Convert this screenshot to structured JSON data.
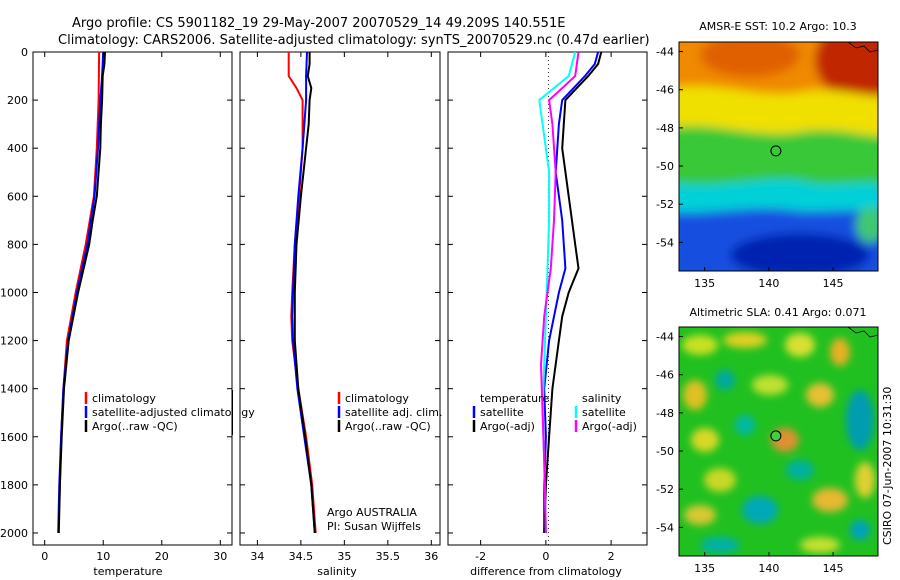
{
  "header": {
    "line1": "Argo profile: CS 5901182_19 29-May-2007 20070529_14 49.209S 140.551E",
    "line2": "Climatology: CARS2006. Satellite-adjusted climatology: synTS_20070529.nc (0.47d earlier)"
  },
  "credits": {
    "argo_line1": "Argo AUSTRALIA",
    "argo_line2": "PI: Susan Wijffels",
    "stamp": "CSIRO 07-Jun-2007 10:31:30"
  },
  "colors": {
    "climatology": "#ff0000",
    "satellite": "#0000ff",
    "argo": "#000000",
    "salinity": "#00ffff",
    "salinity_adj": "#ff00ff"
  },
  "chart_data": [
    {
      "type": "line",
      "id": "temperature",
      "xlabel": "temperature",
      "ylabel": "",
      "xlim": [
        -2,
        32
      ],
      "ylim": [
        2050,
        0
      ],
      "xticks": [
        0,
        10,
        20,
        30
      ],
      "xtick_labels": [
        "0",
        "10",
        "20",
        "30"
      ],
      "yticks": [
        0,
        200,
        400,
        600,
        800,
        1000,
        1200,
        1400,
        1600,
        1800,
        2000
      ],
      "ytick_labels": [
        "0",
        "200",
        "400",
        "600",
        "800",
        "1000",
        "1200",
        "1400",
        "1600",
        "1800",
        "2000"
      ],
      "legend": {
        "position": "lower-right",
        "entries": [
          {
            "label": "climatology",
            "color": "#ff0000"
          },
          {
            "label": "satellite-adjusted climatology",
            "color": "#0000ff"
          },
          {
            "label": "Argo(..raw -QC)",
            "color": "#000000"
          }
        ]
      },
      "series": [
        {
          "name": "climatology",
          "color": "#ff0000",
          "depth": [
            0,
            200,
            400,
            600,
            800,
            1000,
            1200,
            1400,
            1600,
            1800,
            1900
          ],
          "value": [
            9.3,
            9.2,
            8.9,
            8.4,
            7.0,
            5.3,
            3.8,
            3.2,
            2.8,
            2.6,
            2.5
          ]
        },
        {
          "name": "satellite-adjusted climatology",
          "color": "#0000ff",
          "depth": [
            0,
            100,
            200,
            400,
            600,
            800,
            1000,
            1200,
            1400,
            1600,
            1800,
            2000
          ],
          "value": [
            10.0,
            9.8,
            9.5,
            9.1,
            8.5,
            7.3,
            5.5,
            4.0,
            3.2,
            2.8,
            2.5,
            2.3
          ]
        },
        {
          "name": "Argo(..raw -QC)",
          "color": "#000000",
          "depth": [
            0,
            50,
            100,
            200,
            300,
            400,
            600,
            700,
            800,
            1000,
            1200,
            1400,
            1600,
            1800,
            2000
          ],
          "value": [
            10.3,
            10.2,
            9.9,
            9.8,
            9.6,
            9.5,
            8.9,
            8.2,
            7.6,
            5.7,
            4.1,
            3.3,
            2.9,
            2.6,
            2.4
          ]
        }
      ]
    },
    {
      "type": "line",
      "id": "salinity",
      "xlabel": "salinity",
      "ylabel": "",
      "xlim": [
        33.8,
        36.1
      ],
      "ylim": [
        2050,
        0
      ],
      "xticks": [
        34,
        34.5,
        35,
        35.5,
        36
      ],
      "xtick_labels": [
        "34",
        "34.5",
        "35",
        "35.5",
        "36"
      ],
      "legend": {
        "position": "lower-right",
        "entries": [
          {
            "label": "climatology",
            "color": "#ff0000"
          },
          {
            "label": "satellite adj. clim.",
            "color": "#0000ff"
          },
          {
            "label": "Argo(..raw -QC)",
            "color": "#000000"
          }
        ]
      },
      "series": [
        {
          "name": "climatology",
          "color": "#ff0000",
          "depth": [
            0,
            100,
            150,
            200,
            400,
            600,
            800,
            1000,
            1100,
            1200,
            1400,
            1600,
            1800,
            2000
          ],
          "value": [
            34.36,
            34.36,
            34.45,
            34.52,
            34.52,
            34.48,
            34.43,
            34.4,
            34.39,
            34.4,
            34.47,
            34.56,
            34.63,
            34.67
          ]
        },
        {
          "name": "satellite adj. clim.",
          "color": "#0000ff",
          "depth": [
            0,
            100,
            200,
            400,
            600,
            800,
            1000,
            1100,
            1200,
            1400,
            1600,
            1800,
            2000
          ],
          "value": [
            34.57,
            34.56,
            34.56,
            34.52,
            34.47,
            34.43,
            34.41,
            34.4,
            34.41,
            34.46,
            34.54,
            34.62,
            34.66
          ]
        },
        {
          "name": "Argo(..raw -QC)",
          "color": "#000000",
          "depth": [
            0,
            50,
            100,
            150,
            200,
            300,
            400,
            600,
            800,
            1000,
            1200,
            1400,
            1600,
            1800,
            2000
          ],
          "value": [
            34.6,
            34.6,
            34.58,
            34.62,
            34.6,
            34.59,
            34.56,
            34.5,
            34.45,
            34.43,
            34.43,
            34.47,
            34.55,
            34.62,
            34.66
          ]
        }
      ]
    },
    {
      "type": "line",
      "id": "difference",
      "xlabel": "difference from climatology",
      "ylabel": "",
      "xlim": [
        -3,
        3.1
      ],
      "ylim": [
        2050,
        0
      ],
      "xticks": [
        -2,
        0,
        2
      ],
      "xtick_labels": [
        "-2",
        "0",
        "2"
      ],
      "zero_line": 0,
      "legend": {
        "position": "lower",
        "entries": [
          {
            "group": "temperature",
            "label": "satellite",
            "color": "#0000ff"
          },
          {
            "group": "temperature",
            "label": "Argo(-adj)",
            "color": "#000000"
          },
          {
            "group": "salinity",
            "label": "satellite",
            "color": "#00ffff"
          },
          {
            "group": "salinity",
            "label": "Argo(-adj)",
            "color": "#ff00ff"
          }
        ],
        "group_titles": [
          "temperature",
          "salinity"
        ]
      },
      "series": [
        {
          "name": "temperature satellite",
          "color": "#0000ff",
          "depth": [
            0,
            50,
            100,
            200,
            300,
            500,
            700,
            900,
            1000,
            1200,
            1400,
            1600,
            1800,
            2000
          ],
          "value": [
            1.6,
            1.5,
            1.2,
            0.5,
            0.4,
            0.3,
            0.5,
            0.6,
            0.4,
            0.1,
            -0.05,
            0.0,
            -0.05,
            -0.05
          ]
        },
        {
          "name": "temperature Argo(-adj)",
          "color": "#000000",
          "depth": [
            0,
            50,
            100,
            200,
            400,
            600,
            800,
            900,
            1000,
            1100,
            1200,
            1400,
            1600,
            1800,
            2000
          ],
          "value": [
            1.7,
            1.6,
            1.3,
            0.6,
            0.5,
            0.7,
            0.9,
            1.0,
            0.7,
            0.5,
            0.4,
            0.2,
            0.1,
            0.0,
            -0.05
          ]
        },
        {
          "name": "salinity satellite",
          "color": "#00ffff",
          "depth": [
            0,
            100,
            200,
            300,
            500,
            700,
            900,
            1100,
            1300,
            1500,
            1700,
            2000
          ],
          "value": [
            0.9,
            0.7,
            -0.2,
            -0.1,
            0.1,
            0.1,
            0.05,
            0.0,
            -0.05,
            -0.1,
            -0.05,
            0.0
          ]
        },
        {
          "name": "salinity Argo(-adj)",
          "color": "#ff00ff",
          "depth": [
            0,
            100,
            150,
            200,
            300,
            500,
            700,
            900,
            1100,
            1300,
            1500,
            1700,
            2000
          ],
          "value": [
            1.0,
            0.9,
            0.5,
            0.1,
            0.2,
            0.3,
            0.25,
            0.15,
            -0.05,
            -0.15,
            -0.1,
            -0.05,
            0.0
          ]
        }
      ]
    },
    {
      "type": "heatmap",
      "id": "sst-map",
      "title": "AMSR-E SST: 10.2 Argo: 10.3",
      "xlim": [
        133,
        148.5
      ],
      "ylim": [
        -55.5,
        -43.5
      ],
      "xticks": [
        135,
        140,
        145
      ],
      "xtick_labels": [
        "135",
        "140",
        "145"
      ],
      "yticks": [
        -44,
        -46,
        -48,
        -50,
        -52,
        -54
      ],
      "ytick_labels": [
        "-44",
        "-46",
        "-48",
        "-50",
        "-52",
        "-54"
      ],
      "float_position": {
        "lon": 140.551,
        "lat": -49.209
      },
      "marker_fill": "none"
    },
    {
      "type": "heatmap",
      "id": "sla-map",
      "title": "Altimetric SLA: 0.41 Argo: 0.071",
      "xlim": [
        133,
        148.5
      ],
      "ylim": [
        -55.5,
        -43.5
      ],
      "xticks": [
        135,
        140,
        145
      ],
      "xtick_labels": [
        "135",
        "140",
        "145"
      ],
      "yticks": [
        -44,
        -46,
        -48,
        -50,
        -52,
        -54
      ],
      "ytick_labels": [
        "-44",
        "-46",
        "-48",
        "-50",
        "-52",
        "-54"
      ],
      "float_position": {
        "lon": 140.551,
        "lat": -49.209
      },
      "marker_fill": "#3fcf3f"
    }
  ]
}
